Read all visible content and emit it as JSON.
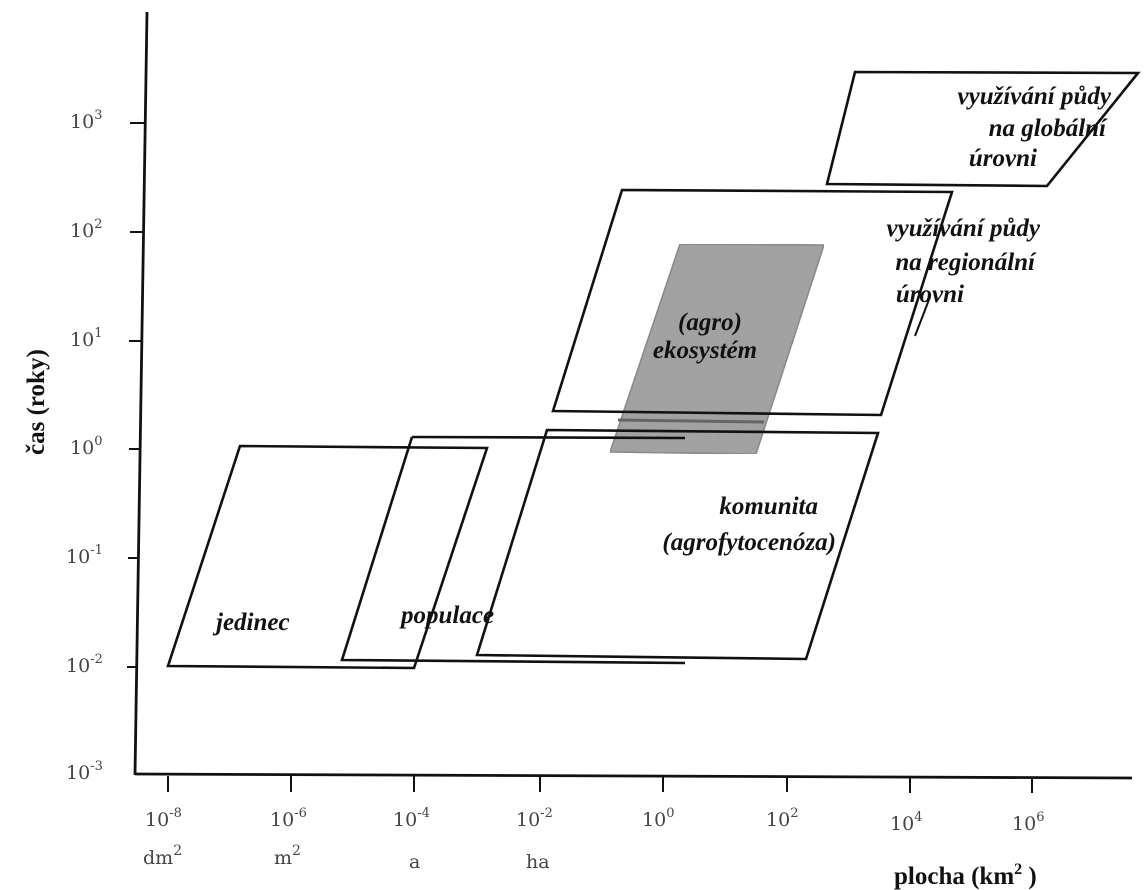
{
  "axes": {
    "y_title": "čas (roky)",
    "x_title_main": "plocha (km",
    "x_title_sup": "2",
    "x_title_end": " )",
    "y_ticks": [
      {
        "base": "10",
        "exp": "3"
      },
      {
        "base": "10",
        "exp": "2"
      },
      {
        "base": "10",
        "exp": "1"
      },
      {
        "base": "10",
        "exp": "0"
      },
      {
        "base": "10",
        "exp": "-1"
      },
      {
        "base": "10",
        "exp": "-2"
      },
      {
        "base": "10",
        "exp": "-3"
      }
    ],
    "x_ticks": [
      {
        "base": "10",
        "exp": "-8"
      },
      {
        "base": "10",
        "exp": "-6"
      },
      {
        "base": "10",
        "exp": "-4"
      },
      {
        "base": "10",
        "exp": "-2"
      },
      {
        "base": "10",
        "exp": "0"
      },
      {
        "base": "10",
        "exp": "2"
      },
      {
        "base": "10",
        "exp": "4"
      },
      {
        "base": "10",
        "exp": "6"
      }
    ],
    "x_units": [
      {
        "base": "dm",
        "exp": "2"
      },
      {
        "base": "m",
        "exp": "2"
      },
      {
        "base": "a",
        "exp": ""
      },
      {
        "base": "ha",
        "exp": ""
      }
    ]
  },
  "regions": {
    "jedinec": [
      "jedinec"
    ],
    "populace": [
      "populace"
    ],
    "komunita": [
      "komunita",
      "(agrofytocenóza)"
    ],
    "ekosystem": [
      "(agro)",
      "ekosystém"
    ],
    "regional": [
      "využívání půdy",
      "na regionální",
      "úrovni"
    ],
    "global": [
      "využívání půdy",
      "na globální",
      "úrovni"
    ]
  },
  "colors": {
    "ecosystem_fill": "#9a9a9a",
    "lines": "#111111"
  }
}
